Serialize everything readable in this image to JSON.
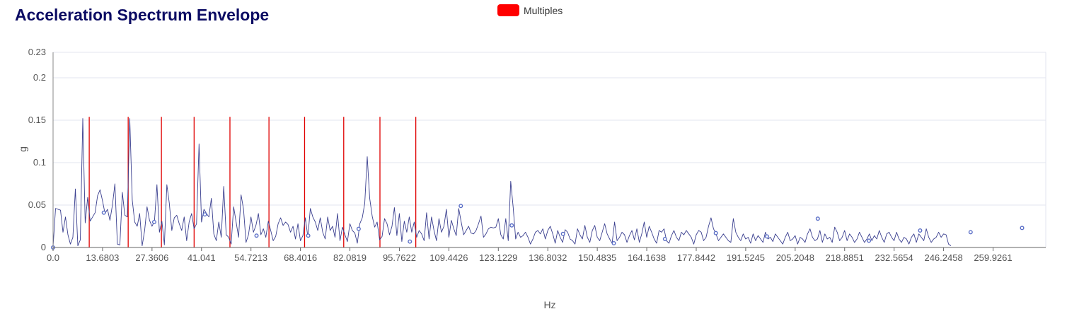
{
  "title": "Acceleration Spectrum Envelope",
  "legend": {
    "label": "Multiples",
    "color": "#ff0000"
  },
  "colors": {
    "series": "#3a3f8f",
    "marker": "#5b6fc7",
    "multiples": "#e00000",
    "grid": "#e3e6ef",
    "axis": "#888888"
  },
  "chart_data": {
    "type": "line",
    "title": "Acceleration Spectrum Envelope",
    "xlabel": "Hz",
    "ylabel": "g",
    "xlim": [
      0,
      274.5
    ],
    "ylim": [
      0,
      0.23
    ],
    "grid": true,
    "legend_position": "top-center",
    "y_ticks": [
      0,
      0.05,
      0.1,
      0.15,
      0.2,
      0.23
    ],
    "y_tick_labels": [
      "0",
      "0.05",
      "0.1",
      "0.15",
      "0.2",
      "0.23"
    ],
    "x_ticks": [
      0.0,
      13.6803,
      27.3606,
      41.041,
      54.7213,
      68.4016,
      82.0819,
      95.7622,
      109.4426,
      123.1229,
      136.8032,
      150.4835,
      164.1638,
      177.8442,
      191.5245,
      205.2048,
      218.8851,
      232.5654,
      246.2458,
      259.9261
    ],
    "x_tick_labels": [
      "0.0",
      "13.6803",
      "27.3606",
      "41.041",
      "54.7213",
      "68.4016",
      "82.0819",
      "95.7622",
      "109.4426",
      "123.1229",
      "136.8032",
      "150.4835",
      "164.1638",
      "177.8442",
      "191.5245",
      "205.2048",
      "218.8851",
      "232.5654",
      "246.2458",
      "259.9261"
    ],
    "series": [
      {
        "name": "",
        "x_step": 0.684,
        "y": [
          0.001,
          0.046,
          0.045,
          0.044,
          0.018,
          0.036,
          0.015,
          0.004,
          0.012,
          0.069,
          0.002,
          0.009,
          0.152,
          0.029,
          0.059,
          0.031,
          0.036,
          0.041,
          0.061,
          0.068,
          0.055,
          0.04,
          0.045,
          0.032,
          0.05,
          0.075,
          0.004,
          0.003,
          0.065,
          0.038,
          0.036,
          0.152,
          0.056,
          0.03,
          0.025,
          0.04,
          0.002,
          0.02,
          0.048,
          0.032,
          0.025,
          0.031,
          0.074,
          0.018,
          0.031,
          0.003,
          0.074,
          0.052,
          0.02,
          0.035,
          0.038,
          0.028,
          0.02,
          0.036,
          0.008,
          0.03,
          0.04,
          0.022,
          0.028,
          0.122,
          0.03,
          0.045,
          0.04,
          0.036,
          0.058,
          0.016,
          0.008,
          0.03,
          0.012,
          0.072,
          0.015,
          0.012,
          0.004,
          0.048,
          0.03,
          0.012,
          0.062,
          0.045,
          0.006,
          0.015,
          0.036,
          0.018,
          0.026,
          0.04,
          0.015,
          0.022,
          0.012,
          0.031,
          0.02,
          0.008,
          0.013,
          0.028,
          0.035,
          0.026,
          0.03,
          0.027,
          0.018,
          0.025,
          0.01,
          0.028,
          0.008,
          0.014,
          0.035,
          0.012,
          0.046,
          0.036,
          0.03,
          0.02,
          0.035,
          0.018,
          0.01,
          0.036,
          0.02,
          0.025,
          0.012,
          0.04,
          0.008,
          0.024,
          0.015,
          0.007,
          0.028,
          0.02,
          0.017,
          0.005,
          0.028,
          0.035,
          0.052,
          0.107,
          0.058,
          0.037,
          0.024,
          0.03,
          0.009,
          0.013,
          0.034,
          0.028,
          0.015,
          0.025,
          0.047,
          0.014,
          0.04,
          0.007,
          0.031,
          0.018,
          0.036,
          0.018,
          0.03,
          0.012,
          0.02,
          0.016,
          0.008,
          0.041,
          0.01,
          0.036,
          0.02,
          0.008,
          0.034,
          0.018,
          0.025,
          0.045,
          0.012,
          0.032,
          0.022,
          0.014,
          0.046,
          0.03,
          0.015,
          0.02,
          0.025,
          0.017,
          0.016,
          0.02,
          0.028,
          0.037,
          0.012,
          0.016,
          0.022,
          0.024,
          0.023,
          0.024,
          0.034,
          0.015,
          0.01,
          0.034,
          0.008,
          0.078,
          0.047,
          0.01,
          0.018,
          0.012,
          0.014,
          0.018,
          0.012,
          0.004,
          0.01,
          0.018,
          0.02,
          0.016,
          0.022,
          0.01,
          0.02,
          0.025,
          0.016,
          0.005,
          0.02,
          0.012,
          0.006,
          0.021,
          0.018,
          0.01,
          0.008,
          0.004,
          0.022,
          0.015,
          0.01,
          0.026,
          0.012,
          0.006,
          0.02,
          0.026,
          0.012,
          0.008,
          0.018,
          0.028,
          0.016,
          0.01,
          0.005,
          0.03,
          0.008,
          0.012,
          0.018,
          0.015,
          0.006,
          0.014,
          0.02,
          0.009,
          0.022,
          0.006,
          0.016,
          0.03,
          0.012,
          0.025,
          0.018,
          0.01,
          0.005,
          0.02,
          0.018,
          0.022,
          0.008,
          0.005,
          0.014,
          0.02,
          0.012,
          0.008,
          0.018,
          0.015,
          0.02,
          0.016,
          0.012,
          0.004,
          0.015,
          0.02,
          0.018,
          0.008,
          0.012,
          0.025,
          0.035,
          0.022,
          0.016,
          0.008,
          0.012,
          0.016,
          0.012,
          0.008,
          0.006,
          0.034,
          0.018,
          0.012,
          0.008,
          0.016,
          0.01,
          0.012,
          0.005,
          0.016,
          0.008,
          0.014,
          0.01,
          0.006,
          0.018,
          0.01,
          0.012,
          0.007,
          0.016,
          0.012,
          0.008,
          0.004,
          0.012,
          0.018,
          0.008,
          0.01,
          0.014,
          0.004,
          0.012,
          0.01,
          0.006,
          0.016,
          0.022,
          0.012,
          0.008,
          0.01,
          0.02,
          0.006,
          0.016,
          0.01,
          0.012,
          0.006,
          0.024,
          0.018,
          0.008,
          0.012,
          0.02,
          0.008,
          0.016,
          0.012,
          0.006,
          0.01,
          0.018,
          0.012,
          0.006,
          0.01,
          0.016,
          0.008,
          0.014,
          0.01,
          0.02,
          0.012,
          0.006,
          0.016,
          0.018,
          0.012,
          0.008,
          0.018,
          0.01,
          0.006,
          0.012,
          0.01,
          0.004,
          0.012,
          0.016,
          0.006,
          0.016,
          0.012,
          0.008,
          0.022,
          0.012,
          0.006,
          0.01,
          0.012,
          0.018,
          0.012,
          0.016,
          0.015,
          0.004,
          0.002
        ],
        "markers": [
          [
            0.0,
            0.0
          ],
          [
            14.03,
            0.041
          ],
          [
            27.97,
            0.03
          ],
          [
            41.96,
            0.039
          ],
          [
            56.26,
            0.014
          ],
          [
            70.55,
            0.014
          ],
          [
            84.5,
            0.022
          ],
          [
            98.66,
            0.007
          ],
          [
            112.75,
            0.049
          ],
          [
            126.83,
            0.026
          ],
          [
            141.0,
            0.016
          ],
          [
            155.06,
            0.005
          ],
          [
            169.2,
            0.01
          ],
          [
            183.26,
            0.017
          ],
          [
            197.4,
            0.013
          ],
          [
            211.46,
            0.034
          ],
          [
            225.6,
            0.008
          ],
          [
            239.76,
            0.02
          ],
          [
            253.72,
            0.018
          ],
          [
            267.95,
            0.023
          ]
        ]
      }
    ],
    "multiples": [
      10.0,
      20.77,
      29.96,
      39.0,
      48.91,
      59.7,
      69.55,
      80.37,
      90.39,
      100.3
    ]
  },
  "multiples_height": 0.154
}
